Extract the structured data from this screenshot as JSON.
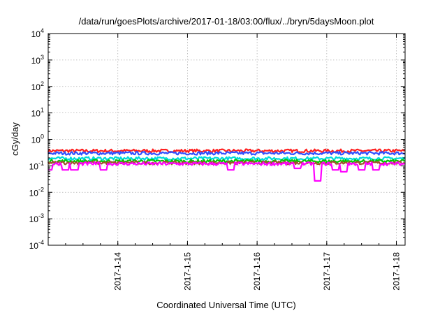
{
  "chart_data": {
    "type": "area",
    "title": "/data/run/goesPlots/archive/2017-01-18/03:00/flux/../bryn/5daysMoon.plot",
    "xlabel": "Coordinated Universal Time (UTC)",
    "ylabel": "cGy/day",
    "yscale": "log",
    "ylim": [
      0.0001,
      10000
    ],
    "xlim": [
      "2017-01-13 00:00",
      "2017-01-18 03:00"
    ],
    "grid": true,
    "legend": "none",
    "y_ticks": [
      {
        "base": "10",
        "exp": "-4",
        "value": 0.0001
      },
      {
        "base": "10",
        "exp": "-3",
        "value": 0.001
      },
      {
        "base": "10",
        "exp": "-2",
        "value": 0.01
      },
      {
        "base": "10",
        "exp": "-1",
        "value": 0.1
      },
      {
        "base": "10",
        "exp": "0",
        "value": 1
      },
      {
        "base": "10",
        "exp": "1",
        "value": 10
      },
      {
        "base": "10",
        "exp": "2",
        "value": 100
      },
      {
        "base": "10",
        "exp": "3",
        "value": 1000
      },
      {
        "base": "10",
        "exp": "4",
        "value": 10000
      }
    ],
    "x_ticks": [
      {
        "label": "2017-1-14",
        "value": "2017-01-14 00:00"
      },
      {
        "label": "2017-1-15",
        "value": "2017-01-15 00:00"
      },
      {
        "label": "2017-1-16",
        "value": "2017-01-16 00:00"
      },
      {
        "label": "2017-1-17",
        "value": "2017-01-17 00:00"
      },
      {
        "label": "2017-1-18",
        "value": "2017-01-18 00:00"
      }
    ],
    "series": [
      {
        "color": "#ff00ff",
        "baseline": 0.12,
        "dips": [
          {
            "t": "2017-01-13 00:00",
            "v": 0.07
          },
          {
            "t": "2017-01-13 06:00",
            "v": 0.07
          },
          {
            "t": "2017-01-13 09:00",
            "v": 0.07
          },
          {
            "t": "2017-01-13 19:00",
            "v": 0.07
          },
          {
            "t": "2017-01-15 15:00",
            "v": 0.07
          },
          {
            "t": "2017-01-16 14:00",
            "v": 0.08
          },
          {
            "t": "2017-01-16 21:00",
            "v": 0.027
          },
          {
            "t": "2017-01-17 03:00",
            "v": 0.07
          },
          {
            "t": "2017-01-17 06:00",
            "v": 0.06
          },
          {
            "t": "2017-01-17 12:00",
            "v": 0.07
          },
          {
            "t": "2017-01-17 17:00",
            "v": 0.07
          }
        ]
      },
      {
        "color": "#a0522d",
        "baseline": 0.13,
        "dips": []
      },
      {
        "color": "#00c800",
        "baseline": 0.15,
        "dips": []
      },
      {
        "color": "#00dada",
        "baseline": 0.19,
        "dips": []
      },
      {
        "color": "#3050ff",
        "baseline": 0.3,
        "dips": []
      },
      {
        "color": "#ff2020",
        "baseline": 0.37,
        "dips": []
      }
    ]
  }
}
